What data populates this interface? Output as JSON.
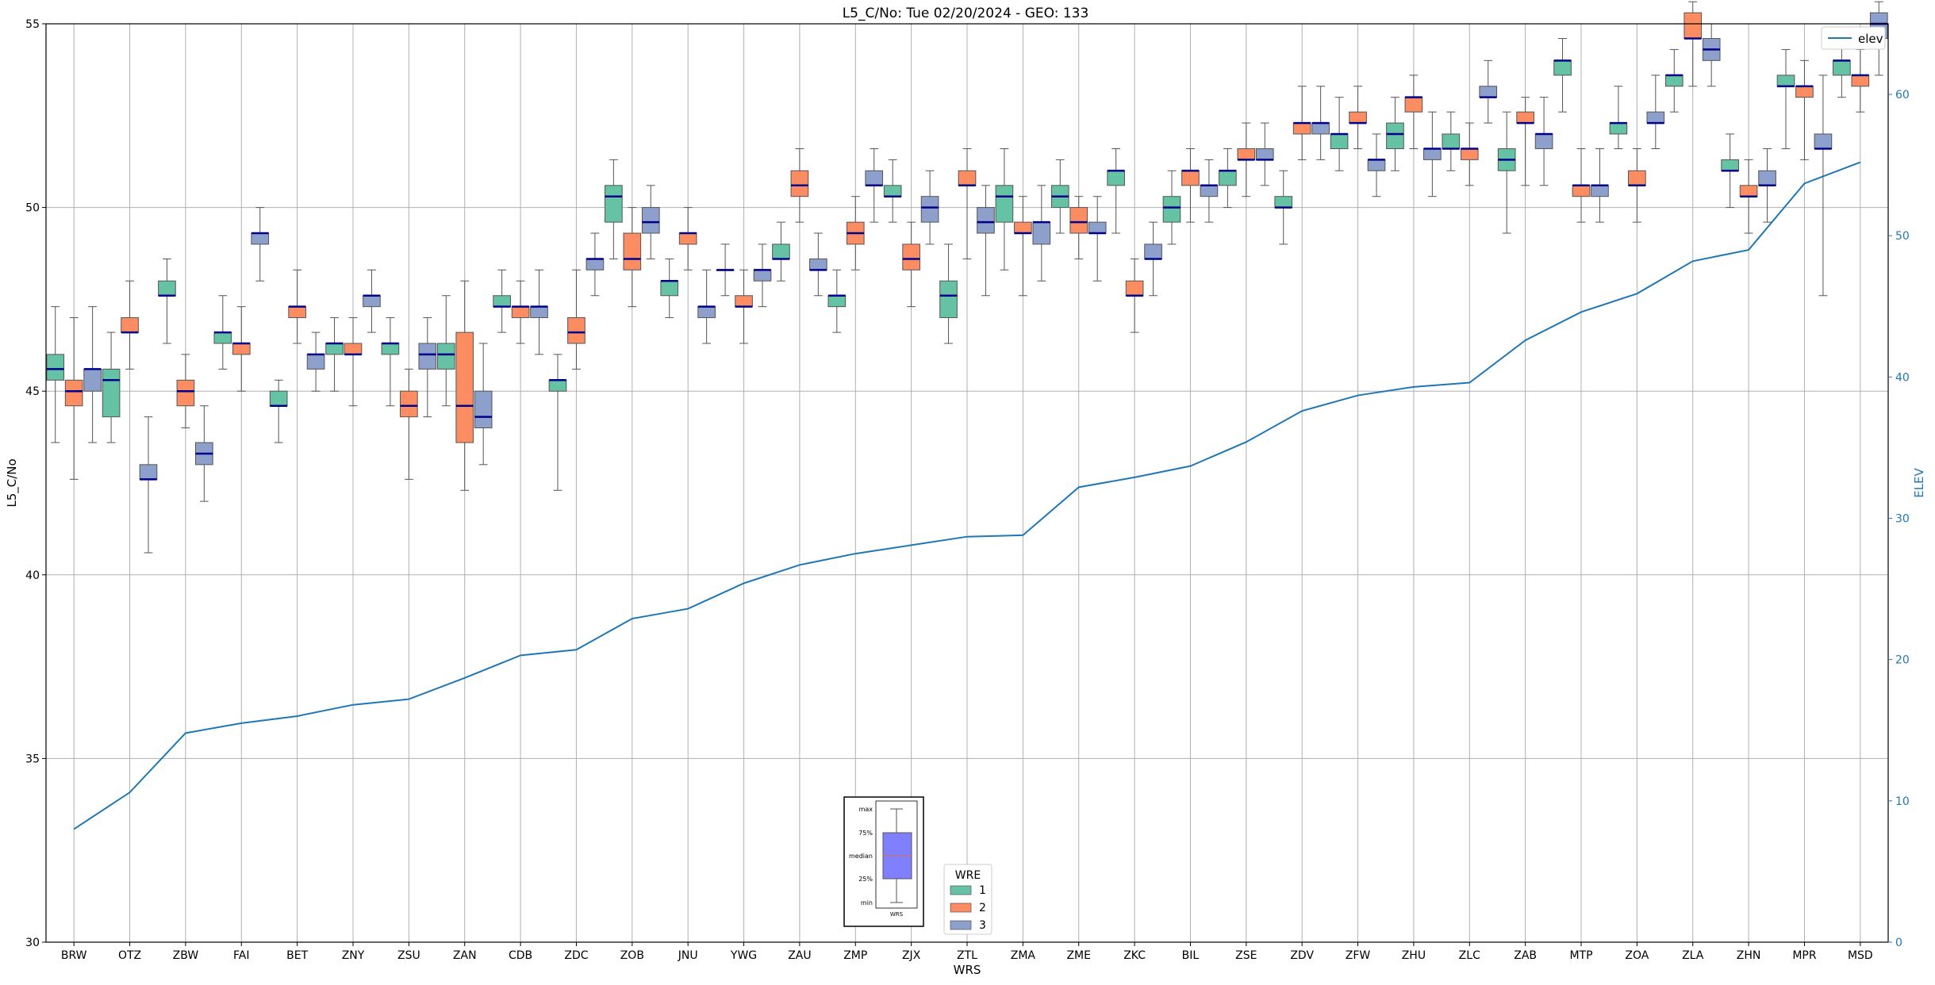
{
  "chart_data": {
    "type": "box",
    "title": "L5_C/No: Tue 02/20/2024 - GEO: 133",
    "xlabel": "WRS",
    "ylabel": "L5_C/No",
    "y2label": "ELEV",
    "ylim": [
      30,
      55
    ],
    "y2lim": [
      0,
      65
    ],
    "yticks": [
      30,
      35,
      40,
      45,
      50,
      55
    ],
    "y2ticks": [
      0,
      10,
      20,
      30,
      40,
      50,
      60
    ],
    "grid": true,
    "categories": [
      "BRW",
      "OTZ",
      "ZBW",
      "FAI",
      "BET",
      "ZNY",
      "ZSU",
      "ZAN",
      "CDB",
      "ZDC",
      "ZOB",
      "JNU",
      "YWG",
      "ZAU",
      "ZMP",
      "ZJX",
      "ZTL",
      "ZMA",
      "ZME",
      "ZKC",
      "BIL",
      "ZSE",
      "ZDV",
      "ZFW",
      "ZHU",
      "ZLC",
      "ZAB",
      "MTP",
      "ZOA",
      "ZLA",
      "ZHN",
      "MPR",
      "MSD"
    ],
    "legend": {
      "title": "WRE",
      "placement": "bottom-center",
      "entries": [
        {
          "label": "1",
          "color": "#66c2a5"
        },
        {
          "label": "2",
          "color": "#fc8d62"
        },
        {
          "label": "3",
          "color": "#8da0cb"
        }
      ]
    },
    "line_legend": {
      "label": "elev",
      "placement": "top-right",
      "color": "#1f77b4"
    },
    "key_box": {
      "labels": [
        "max",
        "75%",
        "median",
        "25%",
        "min"
      ],
      "xlabel": "WRS",
      "color": "#8080ff"
    },
    "series": [
      {
        "name": "1",
        "color": "#66c2a5",
        "boxes": [
          [
            43.6,
            45.3,
            45.6,
            46.0,
            47.3
          ],
          [
            43.6,
            44.3,
            45.3,
            45.6,
            46.6
          ],
          [
            46.3,
            47.6,
            47.6,
            48.0,
            48.6
          ],
          [
            45.6,
            46.3,
            46.6,
            46.6,
            47.6
          ],
          [
            43.6,
            44.6,
            44.6,
            45.0,
            45.3
          ],
          [
            45.0,
            46.0,
            46.3,
            46.3,
            47.0
          ],
          [
            44.6,
            46.0,
            46.3,
            46.3,
            47.0
          ],
          [
            44.6,
            45.6,
            46.0,
            46.3,
            47.6
          ],
          [
            46.6,
            47.3,
            47.3,
            47.6,
            48.3
          ],
          [
            42.3,
            45.0,
            45.3,
            45.3,
            46.0
          ],
          [
            48.6,
            49.6,
            50.3,
            50.6,
            51.3
          ],
          [
            47.0,
            47.6,
            48.0,
            48.0,
            48.6
          ],
          [
            47.6,
            48.3,
            48.3,
            48.3,
            49.0
          ],
          [
            48.0,
            48.6,
            48.6,
            49.0,
            49.6
          ],
          [
            46.6,
            47.3,
            47.6,
            47.6,
            48.3
          ],
          [
            49.6,
            50.3,
            50.3,
            50.6,
            51.3
          ],
          [
            46.3,
            47.0,
            47.6,
            48.0,
            49.0
          ],
          [
            48.3,
            49.6,
            50.3,
            50.6,
            51.6
          ],
          [
            49.3,
            50.0,
            50.3,
            50.6,
            51.3
          ],
          [
            49.3,
            50.6,
            51.0,
            51.0,
            51.6
          ],
          [
            49.0,
            49.6,
            50.0,
            50.3,
            51.0
          ],
          [
            50.0,
            50.6,
            51.0,
            51.0,
            51.6
          ],
          [
            49.0,
            50.0,
            50.0,
            50.3,
            51.0
          ],
          [
            51.0,
            51.6,
            52.0,
            52.0,
            53.0
          ],
          [
            51.0,
            51.6,
            52.0,
            52.3,
            53.0
          ],
          [
            51.0,
            51.6,
            51.6,
            52.0,
            52.6
          ],
          [
            49.3,
            51.0,
            51.3,
            51.6,
            52.6
          ],
          [
            52.6,
            53.6,
            54.0,
            54.0,
            54.6
          ],
          [
            51.6,
            52.0,
            52.3,
            52.3,
            53.3
          ],
          [
            52.6,
            53.3,
            53.6,
            53.6,
            54.3
          ],
          [
            50.0,
            51.0,
            51.0,
            51.3,
            52.0
          ],
          [
            51.6,
            53.3,
            53.3,
            53.6,
            54.3
          ],
          [
            53.0,
            53.6,
            54.0,
            54.0,
            54.6
          ]
        ]
      },
      {
        "name": "2",
        "color": "#fc8d62",
        "boxes": [
          [
            42.6,
            44.6,
            45.0,
            45.3,
            47.0
          ],
          [
            45.6,
            46.6,
            46.6,
            47.0,
            48.0
          ],
          [
            44.0,
            44.6,
            45.0,
            45.3,
            46.0
          ],
          [
            45.0,
            46.0,
            46.3,
            46.3,
            47.3
          ],
          [
            46.3,
            47.0,
            47.3,
            47.3,
            48.3
          ],
          [
            44.6,
            46.0,
            46.0,
            46.3,
            47.0
          ],
          [
            42.6,
            44.3,
            44.6,
            45.0,
            45.6
          ],
          [
            42.3,
            43.6,
            44.6,
            46.6,
            48.0
          ],
          [
            46.3,
            47.0,
            47.3,
            47.3,
            48.0
          ],
          [
            45.6,
            46.3,
            46.6,
            47.0,
            48.3
          ],
          [
            47.3,
            48.3,
            48.6,
            49.3,
            50.0
          ],
          [
            48.3,
            49.0,
            49.3,
            49.3,
            50.0
          ],
          [
            46.3,
            47.3,
            47.3,
            47.6,
            48.3
          ],
          [
            49.6,
            50.3,
            50.6,
            51.0,
            51.6
          ],
          [
            48.3,
            49.0,
            49.3,
            49.6,
            50.3
          ],
          [
            47.3,
            48.3,
            48.6,
            49.0,
            49.6
          ],
          [
            48.6,
            50.6,
            50.6,
            51.0,
            51.6
          ],
          [
            47.6,
            49.3,
            49.3,
            49.6,
            50.3
          ],
          [
            48.6,
            49.3,
            49.6,
            50.0,
            50.3
          ],
          [
            46.6,
            47.6,
            47.6,
            48.0,
            48.6
          ],
          [
            49.6,
            50.6,
            51.0,
            51.0,
            51.6
          ],
          [
            50.3,
            51.3,
            51.3,
            51.6,
            52.3
          ],
          [
            51.3,
            52.0,
            52.3,
            52.3,
            53.3
          ],
          [
            51.6,
            52.3,
            52.3,
            52.6,
            53.3
          ],
          [
            51.6,
            52.6,
            53.0,
            53.0,
            53.6
          ],
          [
            50.6,
            51.3,
            51.6,
            51.6,
            52.3
          ],
          [
            50.6,
            52.3,
            52.3,
            52.6,
            53.0
          ],
          [
            49.6,
            50.3,
            50.6,
            50.6,
            51.6
          ],
          [
            49.6,
            50.6,
            50.6,
            51.0,
            51.6
          ],
          [
            53.3,
            54.6,
            54.6,
            55.3,
            55.6
          ],
          [
            49.3,
            50.3,
            50.3,
            50.6,
            51.3
          ],
          [
            51.3,
            53.0,
            53.3,
            53.3,
            54.0
          ],
          [
            52.6,
            53.3,
            53.6,
            53.6,
            54.3
          ]
        ]
      },
      {
        "name": "3",
        "color": "#8da0cb",
        "boxes": [
          [
            43.6,
            45.0,
            45.6,
            45.6,
            47.3
          ],
          [
            40.6,
            42.6,
            42.6,
            43.0,
            44.3
          ],
          [
            42.0,
            43.0,
            43.3,
            43.6,
            44.6
          ],
          [
            48.0,
            49.0,
            49.3,
            49.3,
            50.0
          ],
          [
            45.0,
            45.6,
            46.0,
            46.0,
            46.6
          ],
          [
            46.6,
            47.3,
            47.6,
            47.6,
            48.3
          ],
          [
            44.3,
            45.6,
            46.0,
            46.3,
            47.0
          ],
          [
            43.0,
            44.0,
            44.3,
            45.0,
            46.3
          ],
          [
            46.0,
            47.0,
            47.3,
            47.3,
            48.3
          ],
          [
            47.6,
            48.3,
            48.6,
            48.6,
            49.3
          ],
          [
            48.6,
            49.3,
            49.6,
            50.0,
            50.6
          ],
          [
            46.3,
            47.0,
            47.3,
            47.3,
            48.3
          ],
          [
            47.3,
            48.0,
            48.3,
            48.3,
            49.0
          ],
          [
            47.6,
            48.3,
            48.3,
            48.6,
            49.3
          ],
          [
            49.6,
            50.6,
            50.6,
            51.0,
            51.6
          ],
          [
            49.0,
            49.6,
            50.0,
            50.3,
            51.0
          ],
          [
            47.6,
            49.3,
            49.6,
            50.0,
            50.6
          ],
          [
            48.0,
            49.0,
            49.6,
            49.6,
            50.6
          ],
          [
            48.0,
            49.3,
            49.3,
            49.6,
            50.3
          ],
          [
            47.6,
            48.6,
            48.6,
            49.0,
            49.6
          ],
          [
            49.6,
            50.3,
            50.6,
            50.6,
            51.3
          ],
          [
            50.6,
            51.3,
            51.3,
            51.6,
            52.3
          ],
          [
            51.3,
            52.0,
            52.3,
            52.3,
            53.3
          ],
          [
            50.3,
            51.0,
            51.3,
            51.3,
            52.0
          ],
          [
            50.3,
            51.3,
            51.6,
            51.6,
            52.6
          ],
          [
            52.3,
            53.0,
            53.0,
            53.3,
            54.0
          ],
          [
            50.6,
            51.6,
            52.0,
            52.0,
            53.0
          ],
          [
            49.6,
            50.3,
            50.6,
            50.6,
            51.6
          ],
          [
            51.6,
            52.3,
            52.3,
            52.6,
            53.6
          ],
          [
            53.3,
            54.0,
            54.3,
            54.6,
            55.0
          ],
          [
            49.6,
            50.6,
            50.6,
            51.0,
            51.6
          ],
          [
            47.6,
            51.6,
            51.6,
            52.0,
            53.6
          ],
          [
            53.6,
            54.6,
            55.0,
            55.3,
            55.6
          ]
        ]
      }
    ],
    "elev": {
      "name": "elev",
      "values": [
        8.0,
        10.6,
        14.8,
        15.5,
        16.0,
        16.8,
        17.2,
        18.7,
        20.3,
        20.7,
        22.9,
        23.6,
        25.4,
        26.7,
        27.5,
        28.1,
        28.7,
        28.8,
        32.2,
        32.9,
        33.7,
        35.4,
        37.6,
        38.7,
        39.3,
        39.6,
        42.6,
        44.6,
        45.9,
        48.2,
        49.0,
        53.7,
        55.2
      ]
    }
  }
}
